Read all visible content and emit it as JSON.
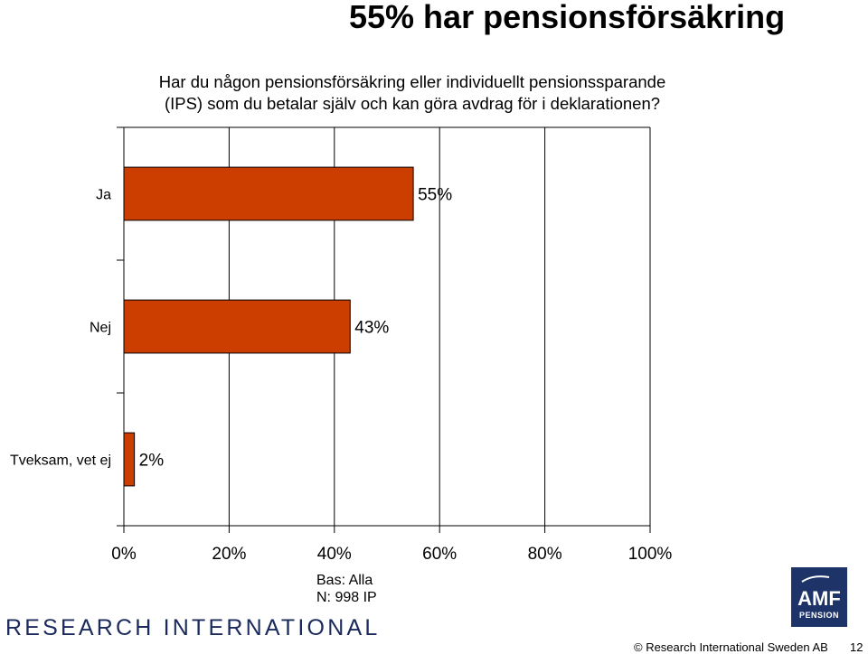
{
  "title": "55% har pensionsförsäkring",
  "question": {
    "line1": "Har du någon pensionsförsäkring eller individuellt pensionssparande",
    "line2": "(IPS) som du betalar själv och kan göra avdrag för i deklarationen?"
  },
  "chart_data": {
    "type": "bar",
    "orientation": "horizontal",
    "categories": [
      "Ja",
      "Nej",
      "Tveksam, vet ej"
    ],
    "values": [
      55,
      43,
      2
    ],
    "value_labels": [
      "55%",
      "43%",
      "2%"
    ],
    "x_ticks": [
      "0%",
      "20%",
      "40%",
      "60%",
      "80%",
      "100%"
    ],
    "xlim": [
      0,
      100
    ],
    "grid": true,
    "bar_color": "#CC3D00",
    "bar_edge_color": "#000000"
  },
  "footnote": {
    "base": "Bas: Alla",
    "n": "N: 998 IP"
  },
  "logos": {
    "research_international": "RESEARCH INTERNATIONAL",
    "amf_name": "AMF",
    "amf_sub": "PENSION"
  },
  "footer": {
    "copyright": "© Research International Sweden AB",
    "page_number": "12"
  }
}
